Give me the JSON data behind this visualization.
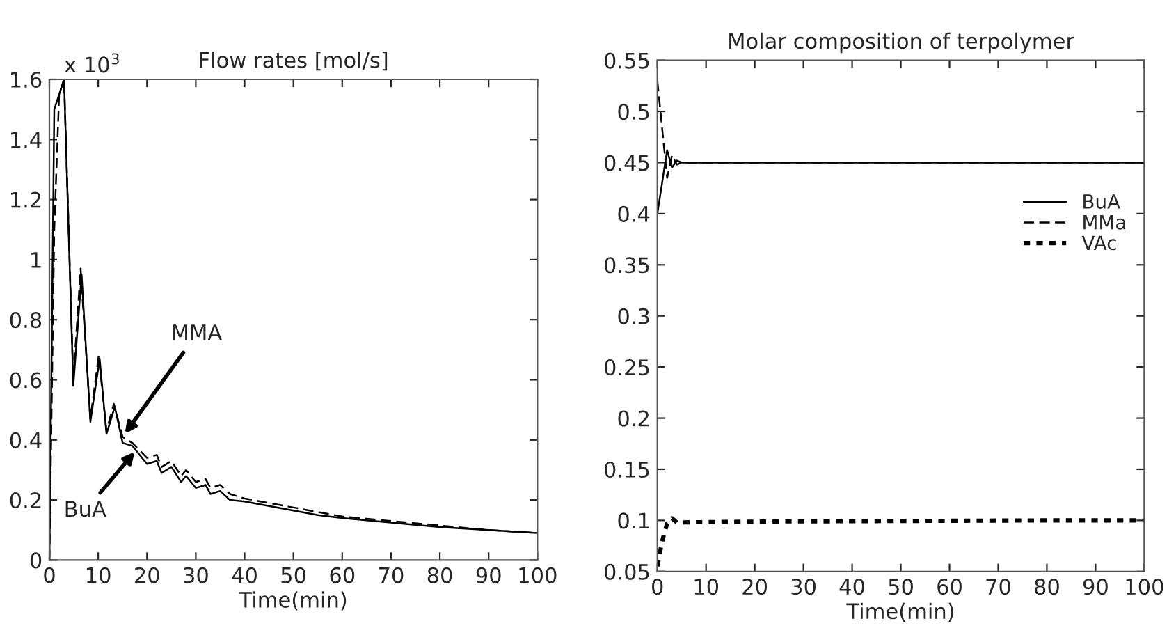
{
  "chart_data": [
    {
      "type": "line",
      "title": "Flow rates [mol/s]",
      "xlabel": "Time(min)",
      "xlim": [
        0,
        100
      ],
      "xticks": [
        0,
        10,
        20,
        30,
        40,
        50,
        60,
        70,
        80,
        90,
        100
      ],
      "ylim": [
        0,
        1.6
      ],
      "yticks": [
        0,
        0.2,
        0.4,
        0.6,
        0.8,
        1,
        1.2,
        1.4,
        1.6
      ],
      "grid": false,
      "legend": false,
      "annotations": [
        "x 10$^{3}$",
        {
          "text": "MMA",
          "x": 15,
          "y": 0.41
        },
        {
          "text": "BuA",
          "x": 18,
          "y": 0.37
        }
      ],
      "series": [
        {
          "color": "#000000",
          "line_style": "solid",
          "x": [
            0,
            1,
            3,
            4.9,
            6.6,
            8.4,
            10.3,
            11.7,
            13.4,
            15,
            17,
            20,
            22,
            23,
            25,
            27,
            28,
            30,
            32,
            33,
            35,
            37,
            40,
            45,
            50,
            55,
            60,
            70,
            80,
            90,
            100
          ],
          "values": [
            0,
            1.5,
            1.6,
            0.58,
            0.95,
            0.46,
            0.67,
            0.42,
            0.51,
            0.39,
            0.38,
            0.32,
            0.33,
            0.29,
            0.31,
            0.26,
            0.28,
            0.24,
            0.25,
            0.22,
            0.23,
            0.2,
            0.195,
            0.18,
            0.165,
            0.15,
            0.14,
            0.125,
            0.11,
            0.1,
            0.09
          ]
        },
        {
          "color": "#000000",
          "line_style": "dashed",
          "x": [
            0,
            1,
            2,
            3,
            4.9,
            6.4,
            8.4,
            10.1,
            11.7,
            13.2,
            15,
            17,
            20,
            22,
            23,
            25,
            27,
            28,
            30,
            32,
            33,
            35,
            37,
            40,
            45,
            50,
            55,
            60,
            70,
            80,
            90,
            100
          ],
          "values": [
            0,
            1.1,
            1.55,
            1.6,
            0.6,
            0.97,
            0.47,
            0.68,
            0.43,
            0.52,
            0.41,
            0.39,
            0.34,
            0.35,
            0.31,
            0.33,
            0.28,
            0.3,
            0.26,
            0.27,
            0.24,
            0.25,
            0.22,
            0.205,
            0.19,
            0.175,
            0.16,
            0.145,
            0.13,
            0.115,
            0.1,
            0.09
          ]
        }
      ]
    },
    {
      "type": "line",
      "title": "Molar composition of terpolymer",
      "xlabel": "Time(min)",
      "xlim": [
        0,
        100
      ],
      "xticks": [
        0,
        10,
        20,
        30,
        40,
        50,
        60,
        70,
        80,
        90,
        100
      ],
      "ylim": [
        0.05,
        0.55
      ],
      "yticks": [
        0.05,
        0.1,
        0.15,
        0.2,
        0.25,
        0.3,
        0.35,
        0.4,
        0.45,
        0.5,
        0.55
      ],
      "grid": false,
      "legend": "right",
      "series": [
        {
          "name": "BuA",
          "color": "#000000",
          "line_style": "solid",
          "x": [
            0,
            2,
            3,
            4,
            5,
            100
          ],
          "values": [
            0.4,
            0.462,
            0.445,
            0.452,
            0.45,
            0.45
          ]
        },
        {
          "name": "MMa",
          "color": "#000000",
          "line_style": "dashed",
          "x": [
            0,
            2,
            3,
            4,
            5,
            100
          ],
          "values": [
            0.53,
            0.435,
            0.457,
            0.448,
            0.45,
            0.45
          ]
        },
        {
          "name": "VAc",
          "color": "#000000",
          "line_style": "dotted",
          "x": [
            0,
            1,
            2,
            3,
            4,
            25,
            80,
            100
          ],
          "values": [
            0.055,
            0.08,
            0.097,
            0.102,
            0.098,
            0.099,
            0.1,
            0.1
          ]
        }
      ]
    }
  ]
}
